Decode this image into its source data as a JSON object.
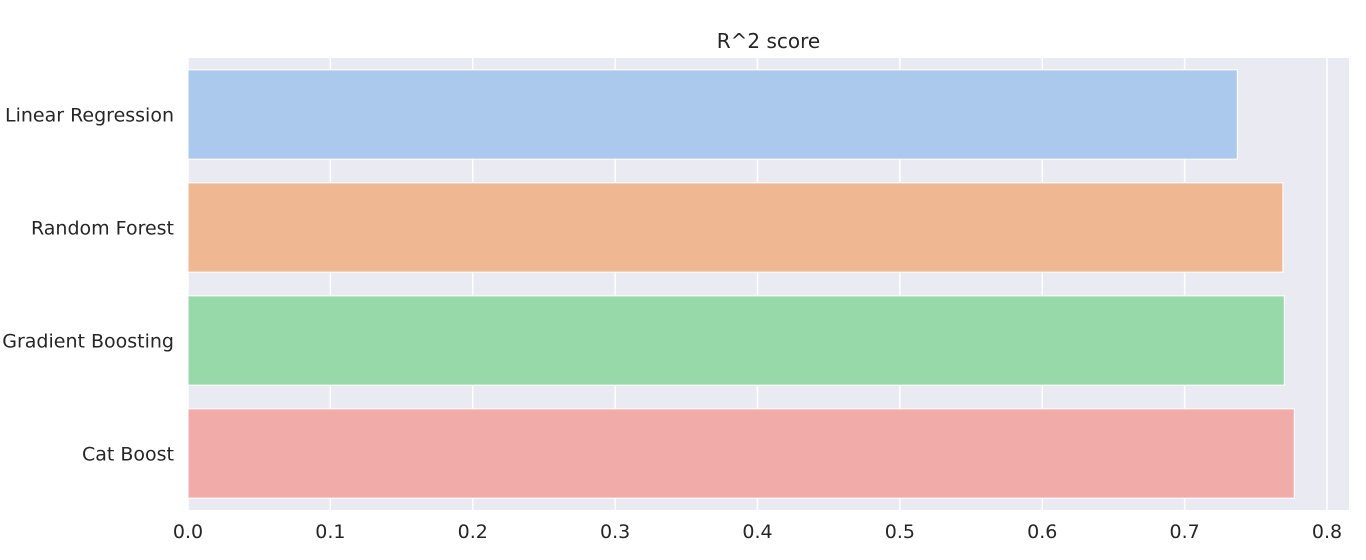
{
  "chart_data": {
    "type": "bar",
    "orientation": "horizontal",
    "title": "R^2 score",
    "xlabel": "",
    "ylabel": "",
    "categories": [
      "Linear Regression",
      "Random Forest",
      "Gradient Boosting",
      "Cat Boost"
    ],
    "values": [
      0.737,
      0.769,
      0.77,
      0.777
    ],
    "xlim": [
      0.0,
      0.8
    ],
    "xticks": [
      "0.0",
      "0.1",
      "0.2",
      "0.3",
      "0.4",
      "0.5",
      "0.6",
      "0.7",
      "0.8"
    ],
    "colors": [
      "#abc9ec",
      "#efb792",
      "#98d9a9",
      "#f1aba9"
    ],
    "background": "#eaeaf2",
    "grid": true,
    "legend": "none"
  }
}
